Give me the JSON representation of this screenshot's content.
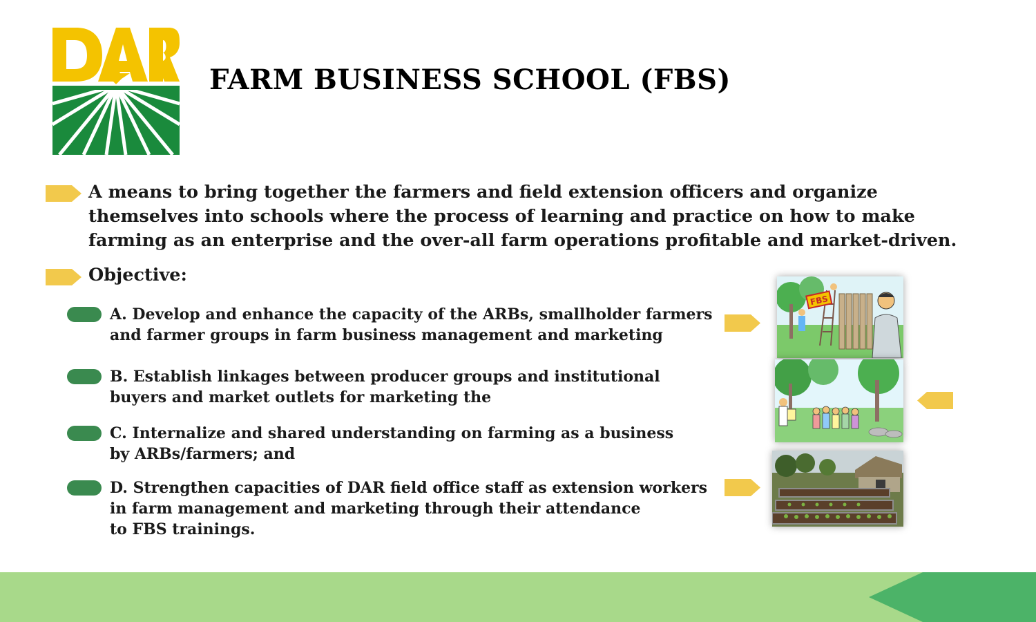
{
  "logo": {
    "text": "DAR",
    "colors": {
      "yellow": "#f4c300",
      "green": "#1a8a3c"
    }
  },
  "title": "FARM BUSINESS SCHOOL (FBS)",
  "definition": {
    "line1": "A means to bring together the farmers and field extension officers and organize",
    "line2": "themselves into schools where the process of learning and practice on how to make",
    "line3": "farming as an enterprise and the over-all farm operations  profitable and market-driven."
  },
  "objective_heading": "Objective:",
  "objectives": [
    {
      "line1": "A. Develop and enhance the capacity of the ARBs, smallholder farmers",
      "line2": "and farmer groups  in farm business management and marketing"
    },
    {
      "line1": "B. Establish linkages between producer groups and institutional",
      "line2": "buyers and market  outlets for marketing the"
    },
    {
      "line1": "C. Internalize and shared understanding on farming as a business",
      "line2": "by ARBs/farmers; and"
    },
    {
      "line1": "D. Strengthen capacities of DAR field office staff as extension workers",
      "line2": "in farm management and marketing through their attendance",
      "line3": "to FBS trainings."
    }
  ],
  "illustrations": [
    {
      "sign_text": "FBS"
    }
  ],
  "colors": {
    "arrow_yellow": "#f2c94c",
    "pill_green": "#3a8a4f",
    "footer_light": "#a8d98a",
    "footer_dark": "#4cb368"
  }
}
